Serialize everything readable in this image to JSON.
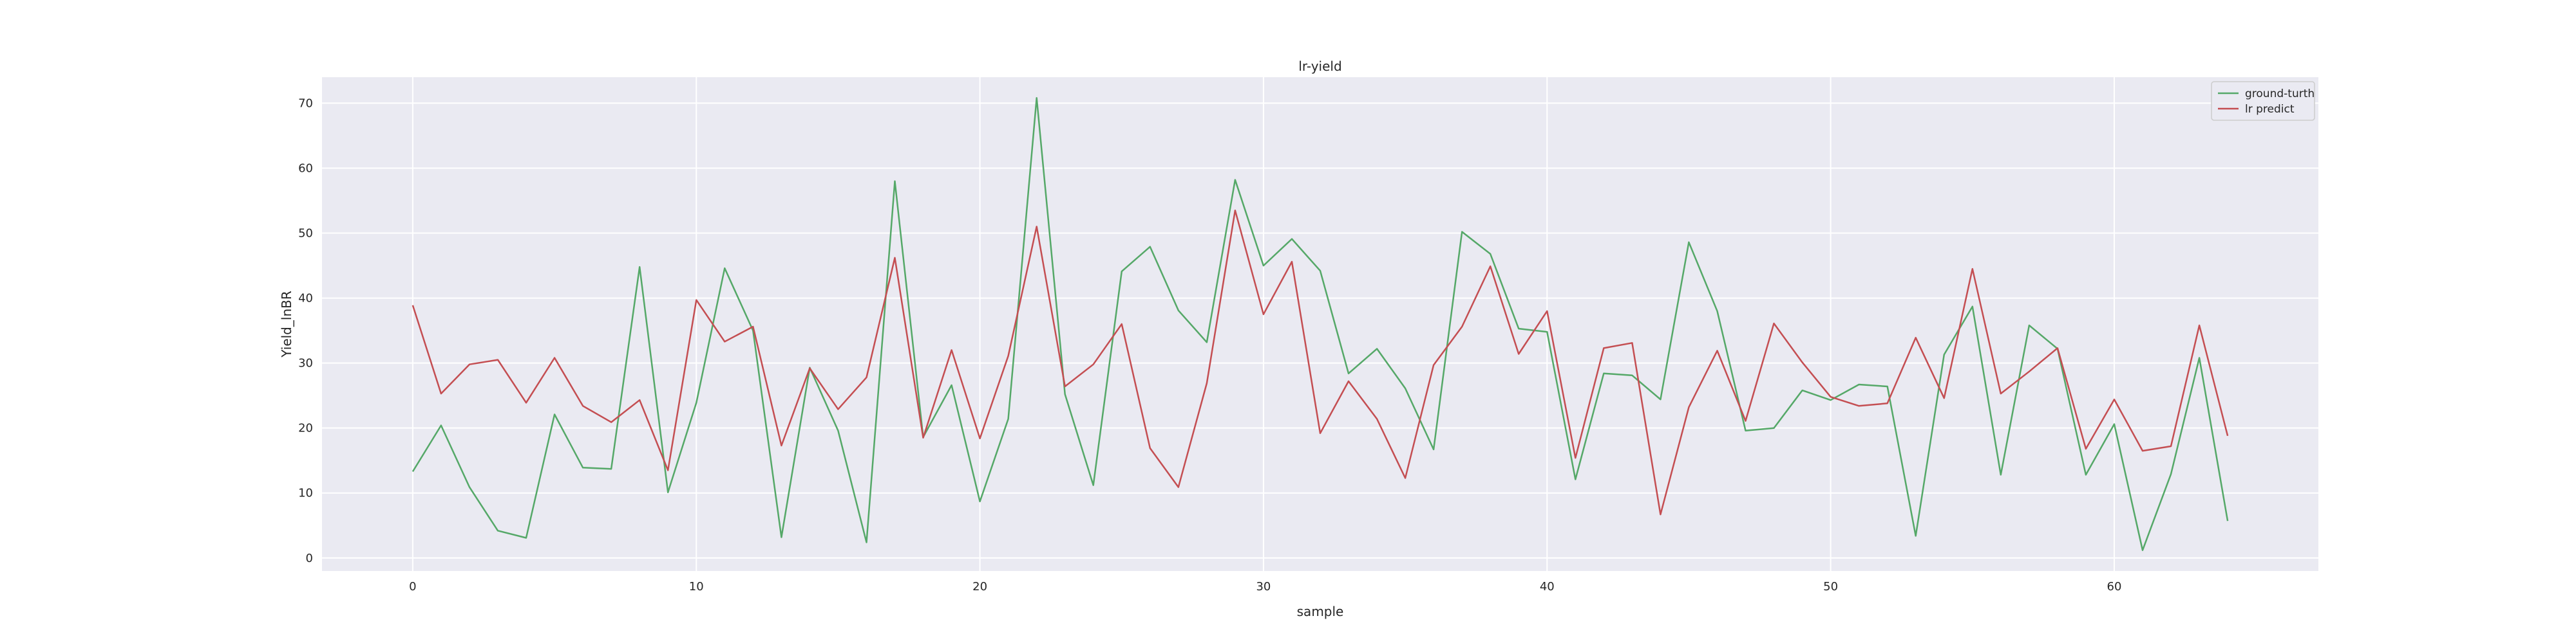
{
  "chart_data": {
    "type": "line",
    "title": "lr-yield",
    "xlabel": "sample",
    "ylabel": "Yield_lnBR",
    "xlim": [
      -3.2,
      67.2
    ],
    "ylim": [
      -2,
      74
    ],
    "xticks": [
      0,
      10,
      20,
      30,
      40,
      50,
      60
    ],
    "yticks": [
      0,
      10,
      20,
      30,
      40,
      50,
      60,
      70
    ],
    "grid": true,
    "legend_position": "top-right",
    "x": [
      0,
      1,
      2,
      3,
      4,
      5,
      6,
      7,
      8,
      9,
      10,
      11,
      12,
      13,
      14,
      15,
      16,
      17,
      18,
      19,
      20,
      21,
      22,
      23,
      24,
      25,
      26,
      27,
      28,
      29,
      30,
      31,
      32,
      33,
      34,
      35,
      36,
      37,
      38,
      39,
      40,
      41,
      42,
      43,
      44,
      45,
      46,
      47,
      48,
      49,
      50,
      51,
      52,
      53,
      54,
      55,
      56,
      57,
      58,
      59,
      60,
      61,
      62,
      63,
      64
    ],
    "series": [
      {
        "name": "ground-turth",
        "color": "#55a868",
        "values": [
          13.3,
          20.4,
          10.9,
          4.2,
          3.1,
          22.1,
          13.9,
          13.7,
          44.8,
          10.1,
          23.9,
          44.6,
          35.0,
          3.2,
          29.3,
          19.6,
          2.4,
          58.0,
          18.6,
          26.6,
          8.7,
          21.4,
          70.8,
          25.2,
          11.2,
          44.1,
          47.9,
          38.1,
          33.2,
          58.2,
          45.0,
          49.1,
          44.2,
          28.4,
          32.2,
          26.1,
          16.7,
          50.2,
          46.8,
          35.3,
          34.8,
          12.1,
          28.4,
          28.1,
          24.4,
          48.6,
          38.0,
          19.6,
          20.0,
          25.8,
          24.3,
          26.7,
          26.4,
          3.4,
          31.3,
          38.7,
          12.8,
          35.8,
          32.2,
          12.8,
          20.6,
          1.2,
          12.9,
          30.8,
          5.7
        ]
      },
      {
        "name": "lr predict",
        "color": "#c44e52",
        "values": [
          38.9,
          25.3,
          29.8,
          30.5,
          23.9,
          30.8,
          23.4,
          20.9,
          24.3,
          13.5,
          39.7,
          33.3,
          35.6,
          17.3,
          29.2,
          22.9,
          27.8,
          46.2,
          18.5,
          32.0,
          18.4,
          31.1,
          51.0,
          26.4,
          29.8,
          36.0,
          16.9,
          10.9,
          26.9,
          53.5,
          37.5,
          45.6,
          19.2,
          27.2,
          21.4,
          12.3,
          29.7,
          35.6,
          44.9,
          31.4,
          38.0,
          15.4,
          32.3,
          33.1,
          6.7,
          23.2,
          31.9,
          21.1,
          36.1,
          30.1,
          24.8,
          23.4,
          23.8,
          33.9,
          24.6,
          44.5,
          25.3,
          28.7,
          32.3,
          16.8,
          24.4,
          16.5,
          17.2,
          35.8,
          18.8
        ]
      }
    ]
  }
}
